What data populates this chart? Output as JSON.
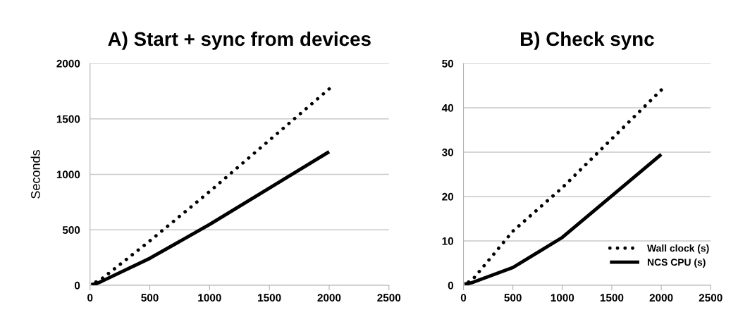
{
  "chart_data": [
    {
      "type": "line",
      "title": "A) Start + sync from devices",
      "ylabel": "Seconds",
      "xlim": [
        0,
        2500
      ],
      "xticks": [
        0,
        500,
        1000,
        1500,
        2000,
        2500
      ],
      "ylim": [
        0,
        2000
      ],
      "yticks": [
        0,
        500,
        1000,
        1500,
        2000
      ],
      "grid": "y",
      "series": [
        {
          "color": "#000000",
          "line_style": "dotted",
          "x": [
            10,
            50,
            100,
            500,
            1000,
            2000
          ],
          "values": [
            10,
            30,
            60,
            400,
            845,
            1770
          ]
        },
        {
          "color": "#000000",
          "line_style": "solid",
          "x": [
            10,
            50,
            100,
            500,
            1000,
            2000
          ],
          "values": [
            5,
            15,
            37,
            243,
            548,
            1204
          ]
        }
      ]
    },
    {
      "type": "line",
      "title": "B) Check sync",
      "xlim": [
        0,
        2500
      ],
      "xticks": [
        0,
        500,
        1000,
        1500,
        2000,
        2500
      ],
      "ylim": [
        0,
        50
      ],
      "yticks": [
        0,
        10,
        20,
        30,
        40,
        50
      ],
      "grid": "y",
      "legend": "bottom right",
      "series": [
        {
          "name": "Wall clock (s)",
          "color": "#000000",
          "line_style": "dotted",
          "x": [
            10,
            50,
            100,
            500,
            1000,
            2000
          ],
          "values": [
            0.5,
            0.7,
            1.5,
            12.2,
            22,
            44
          ]
        },
        {
          "name": "NCS CPU (s)",
          "color": "#000000",
          "line_style": "solid",
          "x": [
            10,
            50,
            100,
            500,
            1000,
            2000
          ],
          "values": [
            0.3,
            0.4,
            0.7,
            4,
            10.8,
            29.5
          ]
        }
      ]
    }
  ]
}
